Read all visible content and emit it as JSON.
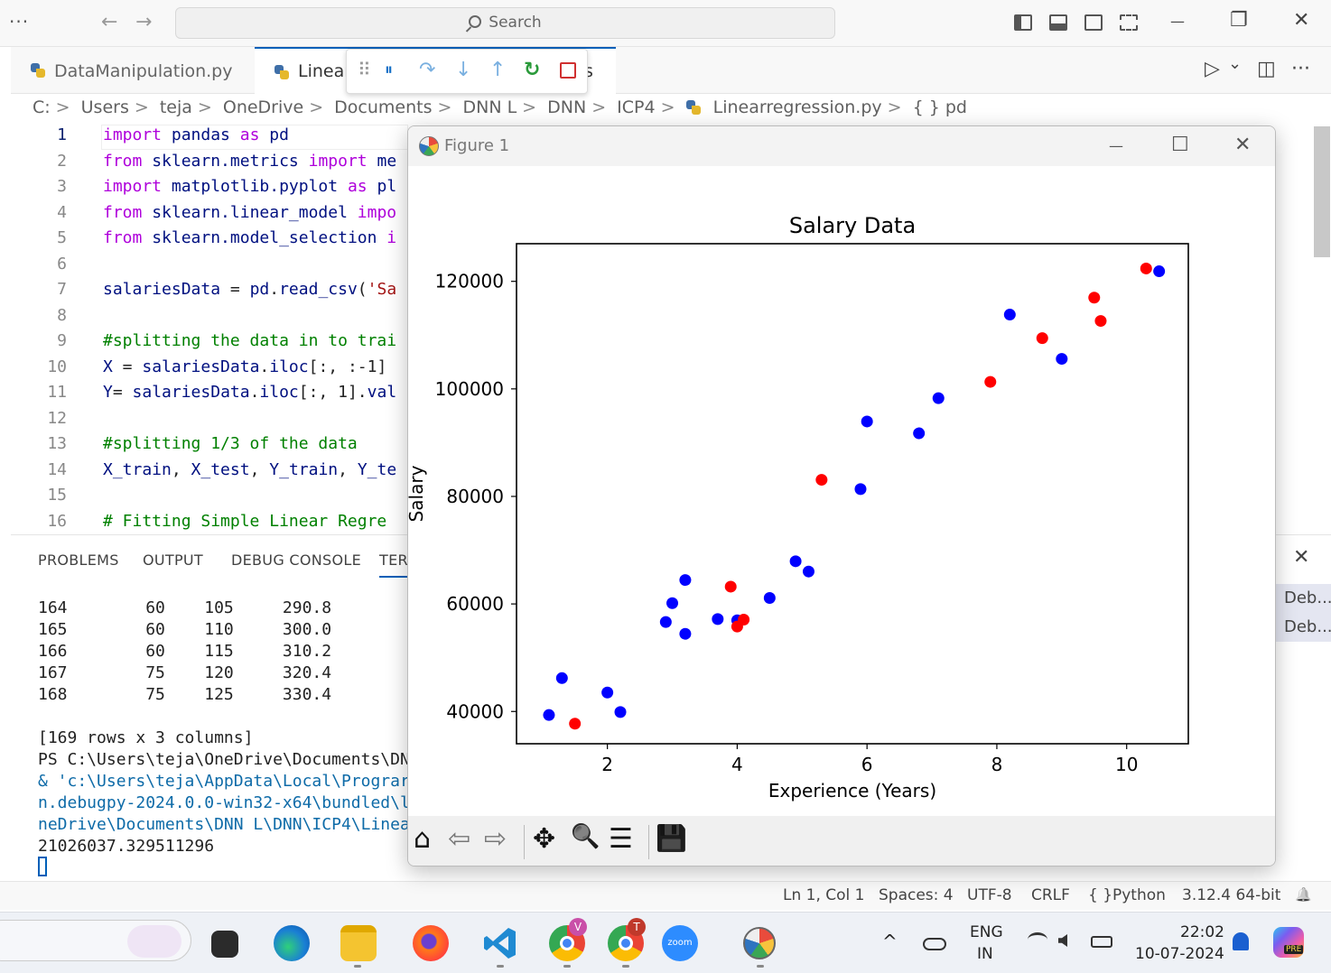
{
  "titlebar": {
    "menu_dots": "···",
    "back_arrow": "←",
    "forward_arrow": "→",
    "search_placeholder": "Search",
    "minimize": "—",
    "restore": "❐",
    "close": "✕"
  },
  "tabs": [
    {
      "label": "DataManipulation.py",
      "icon": "python-file-icon"
    },
    {
      "label": "Linear",
      "icon": "python-file-icon"
    }
  ],
  "tab_overflow_text": "s",
  "debug_toolbar": {
    "grip": "⠿",
    "pause": "⏸",
    "step_over": "↷",
    "step_into": "↓",
    "step_out": "↑",
    "restart": "↻",
    "stop": "■"
  },
  "tabs_right": {
    "run": "▷",
    "run_menu": "⌄",
    "split": "◫",
    "more": "···"
  },
  "breadcrumb": [
    "C:",
    "Users",
    "teja",
    "OneDrive",
    "Documents",
    "DNN L",
    "DNN",
    "ICP4",
    "Linearregression.py",
    "{ } pd"
  ],
  "breadcrumb_sep": ">",
  "editor": {
    "lines": [
      {
        "n": "1",
        "tokens": [
          [
            "kw",
            "import"
          ],
          [
            "pl",
            " "
          ],
          [
            "fn",
            "pandas"
          ],
          [
            "pl",
            " "
          ],
          [
            "kw",
            "as"
          ],
          [
            "pl",
            " "
          ],
          [
            "fn",
            "pd"
          ]
        ]
      },
      {
        "n": "2",
        "tokens": [
          [
            "kw",
            "from"
          ],
          [
            "pl",
            " "
          ],
          [
            "fn",
            "sklearn.metrics"
          ],
          [
            "pl",
            " "
          ],
          [
            "kw",
            "import"
          ],
          [
            "pl",
            " "
          ],
          [
            "fn",
            "me"
          ]
        ]
      },
      {
        "n": "3",
        "tokens": [
          [
            "kw",
            "import"
          ],
          [
            "pl",
            " "
          ],
          [
            "fn",
            "matplotlib.pyplot"
          ],
          [
            "pl",
            " "
          ],
          [
            "kw",
            "as"
          ],
          [
            "pl",
            " "
          ],
          [
            "fn",
            "pl"
          ]
        ]
      },
      {
        "n": "4",
        "tokens": [
          [
            "kw",
            "from"
          ],
          [
            "pl",
            " "
          ],
          [
            "fn",
            "sklearn.linear_model"
          ],
          [
            "pl",
            " "
          ],
          [
            "kw",
            "impo"
          ]
        ]
      },
      {
        "n": "5",
        "tokens": [
          [
            "kw",
            "from"
          ],
          [
            "pl",
            " "
          ],
          [
            "fn",
            "sklearn.model_selection"
          ],
          [
            "pl",
            " "
          ],
          [
            "kw",
            "i"
          ]
        ]
      },
      {
        "n": "6",
        "tokens": []
      },
      {
        "n": "7",
        "tokens": [
          [
            "tx",
            "salariesData"
          ],
          [
            "pl",
            " = "
          ],
          [
            "fn",
            "pd"
          ],
          [
            "pl",
            "."
          ],
          [
            "tx",
            "read_csv"
          ],
          [
            "pl",
            "("
          ],
          [
            "st",
            "'Sa"
          ]
        ]
      },
      {
        "n": "8",
        "tokens": []
      },
      {
        "n": "9",
        "tokens": [
          [
            "cm",
            "#splitting the data in to trai"
          ]
        ]
      },
      {
        "n": "10",
        "tokens": [
          [
            "tx",
            "X"
          ],
          [
            "pl",
            " = "
          ],
          [
            "tx",
            "salariesData"
          ],
          [
            "pl",
            "."
          ],
          [
            "tx",
            "iloc"
          ],
          [
            "pl",
            "[:, :-1]"
          ]
        ]
      },
      {
        "n": "11",
        "tokens": [
          [
            "tx",
            "Y"
          ],
          [
            "pl",
            "= "
          ],
          [
            "tx",
            "salariesData"
          ],
          [
            "pl",
            "."
          ],
          [
            "tx",
            "iloc"
          ],
          [
            "pl",
            "[:, 1]."
          ],
          [
            "tx",
            "val"
          ]
        ]
      },
      {
        "n": "12",
        "tokens": []
      },
      {
        "n": "13",
        "tokens": [
          [
            "cm",
            "#splitting 1/3 of the data"
          ]
        ]
      },
      {
        "n": "14",
        "tokens": [
          [
            "tx",
            "X_train"
          ],
          [
            "pl",
            ", "
          ],
          [
            "tx",
            "X_test"
          ],
          [
            "pl",
            ", "
          ],
          [
            "tx",
            "Y_train"
          ],
          [
            "pl",
            ", "
          ],
          [
            "tx",
            "Y_te"
          ]
        ]
      },
      {
        "n": "15",
        "tokens": []
      },
      {
        "n": "16",
        "tokens": [
          [
            "cm",
            "# Fitting Simple Linear Regre"
          ]
        ]
      }
    ]
  },
  "panel": {
    "tabs": [
      "PROBLEMS",
      "OUTPUT",
      "DEBUG CONSOLE",
      "TERM"
    ],
    "close": "✕",
    "terminal_lines": [
      "164        60    105     290.8",
      "165        60    110     300.0",
      "166        60    115     310.2",
      "167        75    120     320.4",
      "168        75    125     330.4",
      "",
      "[169 rows x 3 columns]",
      "PS C:\\Users\\teja\\OneDrive\\Documents\\DN",
      "& 'c:\\Users\\teja\\AppData\\Local\\Prograr",
      "n.debugpy-2024.0.0-win32-x64\\bundled\\l",
      "neDrive\\Documents\\DNN L\\DNN\\ICP4\\Linea",
      "21026037.329511296"
    ],
    "side_items": [
      "Deb...",
      "Deb..."
    ]
  },
  "statusbar": {
    "position": "Ln 1, Col 1",
    "spaces": "Spaces: 4",
    "encoding": "UTF-8",
    "eol": "CRLF",
    "language_braces": "{ }",
    "language": "Python",
    "interpreter": "3.12.4 64-bit",
    "bell": "🔔"
  },
  "figure": {
    "window_title": "Figure 1",
    "minimize": "—",
    "maximize": "☐",
    "close": "✕",
    "toolbar": {
      "home": "⌂",
      "back": "⇦",
      "forward": "⇨",
      "pan": "✥",
      "zoom": "🔍",
      "configure": "☰",
      "save": "💾"
    }
  },
  "chart_data": {
    "type": "scatter",
    "title": "Salary Data",
    "xlabel": "Experience (Years)",
    "ylabel": "Salary",
    "xlim": [
      0.6,
      10.95
    ],
    "ylim": [
      34000,
      127000
    ],
    "xticks": [
      2,
      4,
      6,
      8,
      10
    ],
    "yticks": [
      40000,
      60000,
      80000,
      100000,
      120000
    ],
    "grid": false,
    "series": [
      {
        "color": "#0000ff",
        "points": [
          [
            1.1,
            39343
          ],
          [
            1.3,
            46205
          ],
          [
            2.0,
            43525
          ],
          [
            2.2,
            39891
          ],
          [
            2.9,
            56642
          ],
          [
            3.0,
            60150
          ],
          [
            3.2,
            54445
          ],
          [
            3.2,
            64445
          ],
          [
            3.7,
            57189
          ],
          [
            4.0,
            56957
          ],
          [
            4.5,
            61111
          ],
          [
            4.9,
            67938
          ],
          [
            5.1,
            66029
          ],
          [
            5.9,
            81363
          ],
          [
            6.0,
            93940
          ],
          [
            6.8,
            91738
          ],
          [
            7.1,
            98273
          ],
          [
            8.2,
            113812
          ],
          [
            9.0,
            105582
          ],
          [
            10.5,
            121872
          ]
        ]
      },
      {
        "color": "#ff0000",
        "points": [
          [
            1.5,
            37731
          ],
          [
            3.9,
            63218
          ],
          [
            4.0,
            55794
          ],
          [
            4.1,
            57081
          ],
          [
            5.3,
            83088
          ],
          [
            7.9,
            101302
          ],
          [
            8.7,
            109431
          ],
          [
            9.5,
            116969
          ],
          [
            9.6,
            112635
          ],
          [
            10.3,
            122391
          ]
        ]
      }
    ]
  },
  "taskbar": {
    "tray_caret": "^",
    "lang_top": "ENG",
    "lang_bottom": "IN",
    "time": "22:02",
    "date": "10-07-2024",
    "copilot_badge": "PRE",
    "badge_v": "V",
    "badge_t": "T",
    "zoom_label": "zoom"
  }
}
